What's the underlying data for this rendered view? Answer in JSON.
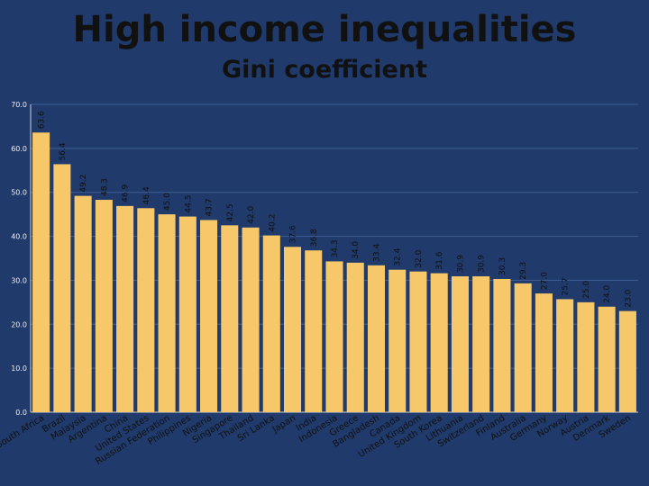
{
  "header": {
    "title": "High income inequalities",
    "subtitle": "Gini coefficient"
  },
  "colors": {
    "background": "#1f3a6b",
    "bar": "#f7c86a",
    "axis_text": "#f0f0f0",
    "label_text": "#111111",
    "grid": "#3f5f95"
  },
  "chart_data": {
    "type": "bar",
    "title": "Gini coefficient",
    "ylim": [
      0,
      70
    ],
    "yticks": [
      "0.0",
      "10.0",
      "20.0",
      "30.0",
      "40.0",
      "50.0",
      "60.0",
      "70.0"
    ],
    "grid": true,
    "categories": [
      "South Africa",
      "Brazil",
      "Malaysia",
      "Argentina",
      "China",
      "United States",
      "Russian Federation",
      "Philippines",
      "Nigeria",
      "Singapore",
      "Thailand",
      "Sri Lanka",
      "Japan",
      "India",
      "Indonesia",
      "Greece",
      "Bangladesh",
      "Canada",
      "United Kingdom",
      "South Korea",
      "Lithuania",
      "Switzerland",
      "Finland",
      "Australia",
      "Germany",
      "Norway",
      "Austria",
      "Denmark",
      "Sweden"
    ],
    "values": [
      63.6,
      56.4,
      49.2,
      48.3,
      46.9,
      46.4,
      45.0,
      44.5,
      43.7,
      42.5,
      42.0,
      40.2,
      37.6,
      36.8,
      34.3,
      34.0,
      33.4,
      32.4,
      32.0,
      31.6,
      30.9,
      30.9,
      30.3,
      29.3,
      27.0,
      25.7,
      25.0,
      24.0,
      23.0
    ],
    "value_labels": [
      "63.6",
      "56.4",
      "49.2",
      "48.3",
      "46.9",
      "46.4",
      "45.0",
      "44.5",
      "43.7",
      "42.5",
      "42.0",
      "40.2",
      "37.6",
      "36.8",
      "34.3",
      "34.0",
      "33.4",
      "32.4",
      "32.0",
      "31.6",
      "30.9",
      "30.9",
      "30.3",
      "29.3",
      "27.0",
      "25.7",
      "25.0",
      "24.0",
      "23.0"
    ]
  }
}
